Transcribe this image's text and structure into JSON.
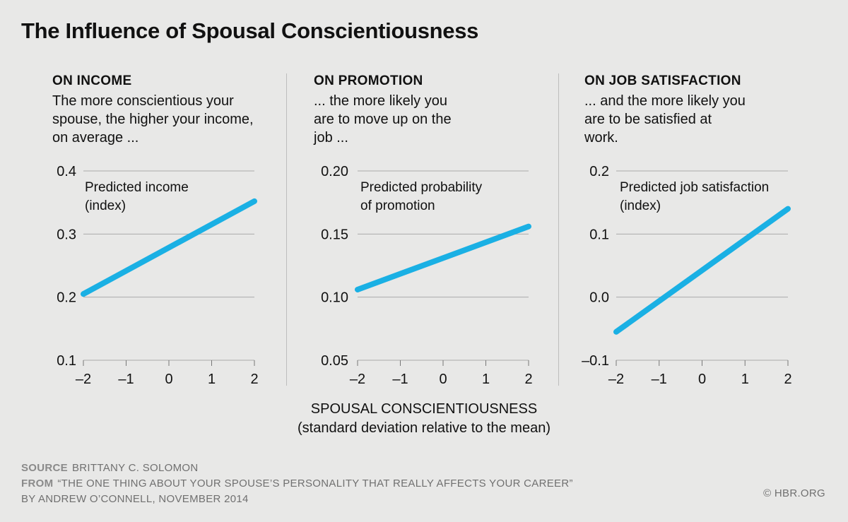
{
  "title": "The Influence of Spousal Conscientiousness",
  "panels": [
    {
      "heading": "ON INCOME",
      "description": "The more conscientious your spouse, the higher your income, on average ..."
    },
    {
      "heading": "ON PROMOTION",
      "description": "... the more likely you are to move up on the job ..."
    },
    {
      "heading": "ON JOB SATISFACTION",
      "description": "... and the more likely you are to be satisfied at work."
    }
  ],
  "x_axis_title": [
    "SPOUSAL CONSCIENTIOUSNESS",
    "(standard deviation relative to the mean)"
  ],
  "footer": {
    "source_label": "SOURCE",
    "source_text": "BRITTANY C. SOLOMON",
    "from_label": "FROM",
    "from_text": "“THE ONE THING ABOUT YOUR SPOUSE’S PERSONALITY THAT REALLY AFFECTS YOUR CAREER”",
    "byline": "BY ANDREW O’CONNELL, NOVEMBER 2014",
    "copyright": "© HBR.ORG"
  },
  "colors": {
    "line": "#1ab0e4",
    "grid": "#aaaaaa",
    "text": "#111111"
  },
  "chart_data": [
    {
      "type": "line",
      "title": "ON INCOME",
      "series_label": [
        "Predicted income",
        "(index)"
      ],
      "x": [
        -2,
        2
      ],
      "y": [
        0.205,
        0.352
      ],
      "xlim": [
        -2,
        2
      ],
      "ylim": [
        0.1,
        0.4
      ],
      "xticks": [
        -2,
        -1,
        0,
        1,
        2
      ],
      "xtick_labels": [
        "–2",
        "–1",
        "0",
        "1",
        "2"
      ],
      "yticks": [
        0.1,
        0.2,
        0.3,
        0.4
      ],
      "ytick_labels": [
        "0.1",
        "0.2",
        "0.3",
        "0.4"
      ],
      "xlabel": "SPOUSAL CONSCIENTIOUSNESS (standard deviation relative to the mean)",
      "ylabel": "Predicted income (index)"
    },
    {
      "type": "line",
      "title": "ON PROMOTION",
      "series_label": [
        "Predicted probability",
        "of promotion"
      ],
      "x": [
        -2,
        2
      ],
      "y": [
        0.106,
        0.156
      ],
      "xlim": [
        -2,
        2
      ],
      "ylim": [
        0.05,
        0.2
      ],
      "xticks": [
        -2,
        -1,
        0,
        1,
        2
      ],
      "xtick_labels": [
        "–2",
        "–1",
        "0",
        "1",
        "2"
      ],
      "yticks": [
        0.05,
        0.1,
        0.15,
        0.2
      ],
      "ytick_labels": [
        "0.05",
        "0.10",
        "0.15",
        "0.20"
      ],
      "xlabel": "SPOUSAL CONSCIENTIOUSNESS (standard deviation relative to the mean)",
      "ylabel": "Predicted probability of promotion"
    },
    {
      "type": "line",
      "title": "ON JOB SATISFACTION",
      "series_label": [
        "Predicted job satisfaction",
        "(index)"
      ],
      "x": [
        -2,
        2
      ],
      "y": [
        -0.055,
        0.14
      ],
      "xlim": [
        -2,
        2
      ],
      "ylim": [
        -0.1,
        0.2
      ],
      "xticks": [
        -2,
        -1,
        0,
        1,
        2
      ],
      "xtick_labels": [
        "–2",
        "–1",
        "0",
        "1",
        "2"
      ],
      "yticks": [
        -0.1,
        0.0,
        0.1,
        0.2
      ],
      "ytick_labels": [
        "–0.1",
        "0.0",
        "0.1",
        "0.2"
      ],
      "xlabel": "SPOUSAL CONSCIENTIOUSNESS (standard deviation relative to the mean)",
      "ylabel": "Predicted job satisfaction (index)"
    }
  ]
}
